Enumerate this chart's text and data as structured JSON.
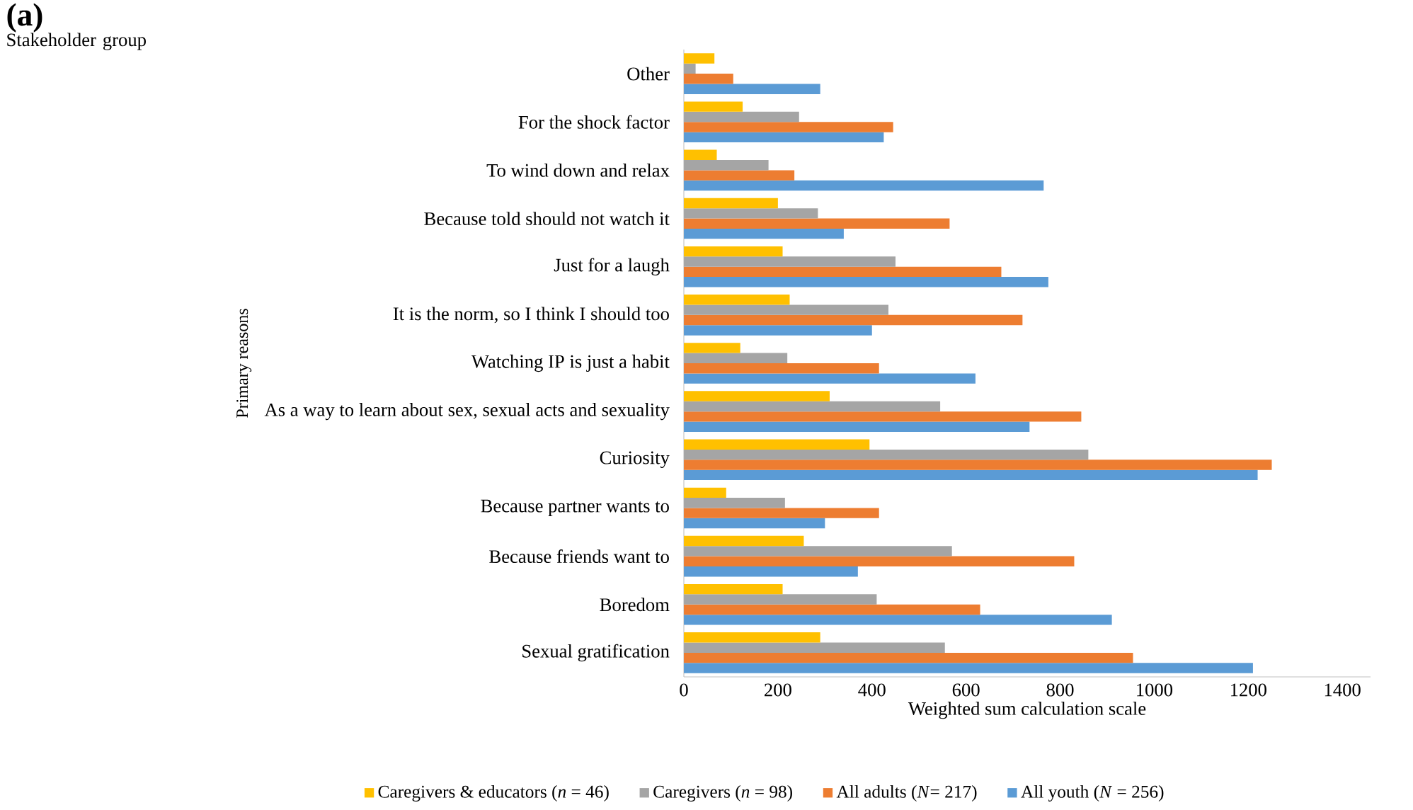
{
  "chart_data": {
    "type": "bar",
    "orientation": "horizontal",
    "title": "(a)",
    "legend_title": "Stakeholder group",
    "xlabel": "Weighted sum calculation scale",
    "ylabel": "Primary reasons",
    "categories": [
      "Other",
      "For the shock factor",
      "To wind down and relax",
      "Because told should not watch it",
      "Just for a laugh",
      "It is the norm, so I think I should too",
      "Watching IP is just a habit",
      "As a way to learn about sex, sexual acts and sexuality",
      "Curiosity",
      "Because partner wants to",
      "Because friends want to",
      "Boredom",
      "Sexual gratification"
    ],
    "series": [
      {
        "name": "Caregivers & educators  (*n* = 46)",
        "color": "#ffc000",
        "values": [
          65,
          125,
          70,
          200,
          210,
          225,
          120,
          310,
          395,
          90,
          255,
          210,
          290
        ]
      },
      {
        "name": "Caregivers  (*n* = 98)",
        "color": "#a5a5a5",
        "values": [
          25,
          245,
          180,
          285,
          450,
          435,
          220,
          545,
          860,
          215,
          570,
          410,
          555
        ]
      },
      {
        "name": "All adults  (*N*= 217)",
        "color": "#ed7d31",
        "values": [
          105,
          445,
          235,
          565,
          675,
          720,
          415,
          845,
          1250,
          415,
          830,
          630,
          955
        ]
      },
      {
        "name": "All youth  (*N* = 256)",
        "color": "#5b9bd5",
        "values": [
          290,
          425,
          765,
          340,
          775,
          400,
          620,
          735,
          1220,
          300,
          370,
          910,
          1210
        ]
      }
    ],
    "xlim": [
      0,
      1460
    ],
    "xticks": [
      0,
      200,
      400,
      600,
      800,
      1000,
      1200,
      1400
    ],
    "legend": "bottom"
  }
}
